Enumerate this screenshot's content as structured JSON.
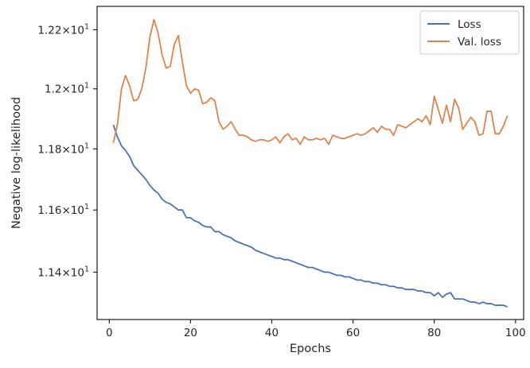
{
  "chart_data": {
    "type": "line",
    "title": "",
    "xlabel": "Epochs",
    "ylabel": "Negative log-likelihood",
    "xlim": [
      -3,
      102
    ],
    "ylim": [
      11.25,
      12.28
    ],
    "yscale": "log",
    "xticks": [
      0,
      20,
      40,
      60,
      80,
      100
    ],
    "yticks": [
      {
        "value": 11.4,
        "mantissa": "1.14",
        "base": "10",
        "exponent": "1"
      },
      {
        "value": 11.6,
        "mantissa": "1.16",
        "base": "10",
        "exponent": "1"
      },
      {
        "value": 11.8,
        "mantissa": "1.18",
        "base": "10",
        "exponent": "1"
      },
      {
        "value": 12.0,
        "mantissa": "1.2",
        "base": "10",
        "exponent": "1"
      },
      {
        "value": 12.2,
        "mantissa": "1.22",
        "base": "10",
        "exponent": "1"
      }
    ],
    "grid": false,
    "legend_position": "top-right",
    "x": [
      1,
      2,
      3,
      4,
      5,
      6,
      7,
      8,
      9,
      10,
      11,
      12,
      13,
      14,
      15,
      16,
      17,
      18,
      19,
      20,
      21,
      22,
      23,
      24,
      25,
      26,
      27,
      28,
      29,
      30,
      31,
      32,
      33,
      34,
      35,
      36,
      37,
      38,
      39,
      40,
      41,
      42,
      43,
      44,
      45,
      46,
      47,
      48,
      49,
      50,
      51,
      52,
      53,
      54,
      55,
      56,
      57,
      58,
      59,
      60,
      61,
      62,
      63,
      64,
      65,
      66,
      67,
      68,
      69,
      70,
      71,
      72,
      73,
      74,
      75,
      76,
      77,
      78,
      79,
      80,
      81,
      82,
      83,
      84,
      85,
      86,
      87,
      88,
      89,
      90,
      91,
      92,
      93,
      94,
      95,
      96,
      97,
      98
    ],
    "series": [
      {
        "name": "Loss",
        "color": "#4c72b0",
        "values": [
          11.88,
          11.84,
          11.81,
          11.795,
          11.775,
          11.745,
          11.73,
          11.715,
          11.7,
          11.68,
          11.665,
          11.655,
          11.635,
          11.625,
          11.62,
          11.61,
          11.6,
          11.6,
          11.575,
          11.575,
          11.565,
          11.56,
          11.55,
          11.545,
          11.545,
          11.53,
          11.53,
          11.52,
          11.515,
          11.51,
          11.5,
          11.495,
          11.49,
          11.485,
          11.48,
          11.47,
          11.465,
          11.46,
          11.455,
          11.45,
          11.445,
          11.445,
          11.44,
          11.44,
          11.435,
          11.43,
          11.425,
          11.42,
          11.415,
          11.415,
          11.41,
          11.405,
          11.4,
          11.4,
          11.395,
          11.39,
          11.39,
          11.385,
          11.385,
          11.38,
          11.375,
          11.375,
          11.37,
          11.37,
          11.365,
          11.365,
          11.36,
          11.36,
          11.355,
          11.355,
          11.35,
          11.35,
          11.345,
          11.345,
          11.345,
          11.34,
          11.34,
          11.335,
          11.335,
          11.325,
          11.335,
          11.32,
          11.33,
          11.335,
          11.315,
          11.315,
          11.315,
          11.31,
          11.305,
          11.305,
          11.3,
          11.305,
          11.3,
          11.3,
          11.295,
          11.295,
          11.295,
          11.29
        ]
      },
      {
        "name": "Val. loss",
        "color": "#dd8452",
        "values": [
          11.82,
          11.88,
          12.0,
          12.045,
          12.01,
          11.96,
          11.965,
          12.0,
          12.07,
          12.175,
          12.235,
          12.19,
          12.115,
          12.07,
          12.075,
          12.15,
          12.18,
          12.09,
          12.01,
          11.985,
          12.0,
          11.995,
          11.95,
          11.955,
          11.97,
          11.96,
          11.89,
          11.865,
          11.875,
          11.89,
          11.865,
          11.845,
          11.845,
          11.84,
          11.83,
          11.825,
          11.83,
          11.83,
          11.825,
          11.83,
          11.84,
          11.82,
          11.84,
          11.85,
          11.83,
          11.835,
          11.815,
          11.84,
          11.83,
          11.83,
          11.835,
          11.83,
          11.835,
          11.815,
          11.845,
          11.84,
          11.835,
          11.835,
          11.84,
          11.845,
          11.85,
          11.845,
          11.85,
          11.86,
          11.87,
          11.855,
          11.875,
          11.865,
          11.865,
          11.845,
          11.88,
          11.875,
          11.87,
          11.88,
          11.89,
          11.9,
          11.89,
          11.91,
          11.88,
          11.975,
          11.93,
          11.885,
          11.945,
          11.89,
          11.965,
          11.935,
          11.865,
          11.885,
          11.905,
          11.89,
          11.845,
          11.85,
          11.925,
          11.925,
          11.85,
          11.85,
          11.875,
          11.91
        ]
      }
    ]
  }
}
